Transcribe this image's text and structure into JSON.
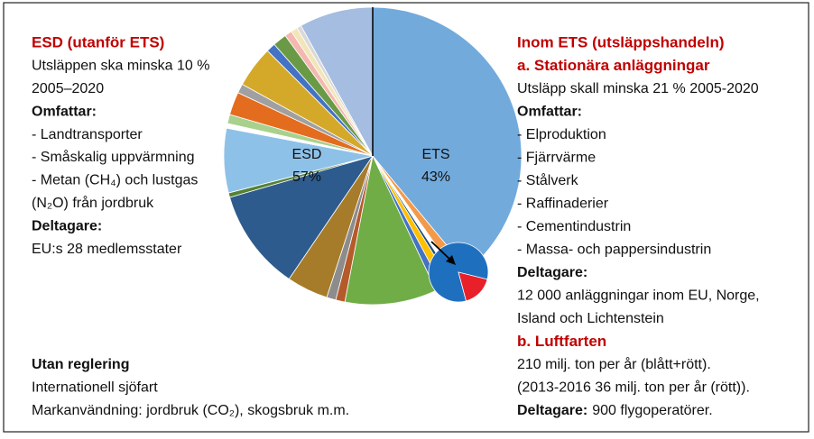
{
  "left": {
    "lines": [
      {
        "text": "ESD (utanför ETS)",
        "style": "heading"
      },
      {
        "text": "Utsläppen ska minska 10 %",
        "style": "normal"
      },
      {
        "text": "2005–2020",
        "style": "normal"
      },
      {
        "text": "Omfattar:",
        "style": "bold"
      },
      {
        "text": "- Landtransporter",
        "style": "normal"
      },
      {
        "text": "- Småskalig uppvärmning",
        "style": "normal"
      },
      {
        "text": "- Metan (CH₄) och lustgas",
        "style": "normal"
      },
      {
        "text": "(N₂O) från jordbruk",
        "style": "normal"
      },
      {
        "text": "Deltagare:",
        "style": "bold"
      },
      {
        "text": "EU:s 28 medlemsstater",
        "style": "normal"
      }
    ]
  },
  "right": {
    "lines": [
      {
        "text": "Inom ETS (utsläppshandeln)",
        "style": "heading"
      },
      {
        "text": "a. Stationära anläggningar",
        "style": "heading"
      },
      {
        "text": "Utsläpp skall minska 21 % 2005-2020",
        "style": "normal"
      },
      {
        "text": "Omfattar:",
        "style": "bold"
      },
      {
        "text": "- Elproduktion",
        "style": "normal"
      },
      {
        "text": "- Fjärrvärme",
        "style": "normal"
      },
      {
        "text": "- Stålverk",
        "style": "normal"
      },
      {
        "text": "- Raffinaderier",
        "style": "normal"
      },
      {
        "text": "- Cementindustrin",
        "style": "normal"
      },
      {
        "text": "- Massa- och pappersindustrin",
        "style": "normal"
      },
      {
        "text": "Deltagare:",
        "style": "bold"
      },
      {
        "text": "12 000 anläggningar inom EU, Norge,",
        "style": "normal"
      },
      {
        "text": "Island och Lichtenstein",
        "style": "normal"
      },
      {
        "text": "b. Luftfarten",
        "style": "heading"
      },
      {
        "text": "210 milj. ton per år (blått+rött).",
        "style": "normal"
      },
      {
        "text": "(2013-2016 36 milj. ton per år (rött)).",
        "style": "normal"
      },
      {
        "lead": "Deltagare:",
        "text": "900 flygoperatörer.",
        "style": "normal"
      }
    ]
  },
  "bottom": {
    "lines": [
      {
        "text": "Utan reglering",
        "style": "bold"
      },
      {
        "text": "Internationell sjöfart",
        "style": "normal"
      },
      {
        "text": "Markanvändning: jordbruk (CO₂), skogsbruk m.m.",
        "style": "normal"
      }
    ]
  },
  "chart_data": {
    "type": "pie",
    "categories": [
      "ETS",
      "ESD"
    ],
    "values": [
      43,
      57
    ],
    "value_labels": [
      "43%",
      "57%"
    ],
    "segments": [
      [
        {
          "value": 39,
          "color": "#72aadc"
        },
        {
          "value": 1.2,
          "color": "#f39a4a"
        },
        {
          "value": 0.6,
          "color": "#ffffff"
        },
        {
          "value": 0.4,
          "color": "#1f4e79"
        },
        {
          "value": 1,
          "color": "#ffc000"
        },
        {
          "value": 0.8,
          "color": "#4472c4"
        }
      ],
      [
        {
          "value": 10,
          "color": "#70ad47"
        },
        {
          "value": 1,
          "color": "#b55a2a"
        },
        {
          "value": 1,
          "color": "#8c8c8c"
        },
        {
          "value": 4.5,
          "color": "#a67c2a"
        },
        {
          "value": 11,
          "color": "#2e5b8e"
        },
        {
          "value": 0.5,
          "color": "#548235"
        },
        {
          "value": 7,
          "color": "#8ec1e8"
        },
        {
          "value": 0.5,
          "color": "#ffffff"
        },
        {
          "value": 1,
          "color": "#a9d18e"
        },
        {
          "value": 2.5,
          "color": "#e46c1e"
        },
        {
          "value": 1,
          "color": "#a0a0a0"
        },
        {
          "value": 4.5,
          "color": "#d4a92a"
        },
        {
          "value": 1,
          "color": "#4472c4"
        },
        {
          "value": 1.5,
          "color": "#6a9a45"
        },
        {
          "value": 0.8,
          "color": "#f4b8b0"
        },
        {
          "value": 0.7,
          "color": "#f2e6b8"
        },
        {
          "value": 0.5,
          "color": "#d9d9d9"
        },
        {
          "value": 8,
          "color": "#a4bde0"
        }
      ]
    ],
    "inset": {
      "values": [
        83,
        17
      ],
      "colors": [
        "#1f6fbf",
        "#e8202a"
      ]
    }
  }
}
